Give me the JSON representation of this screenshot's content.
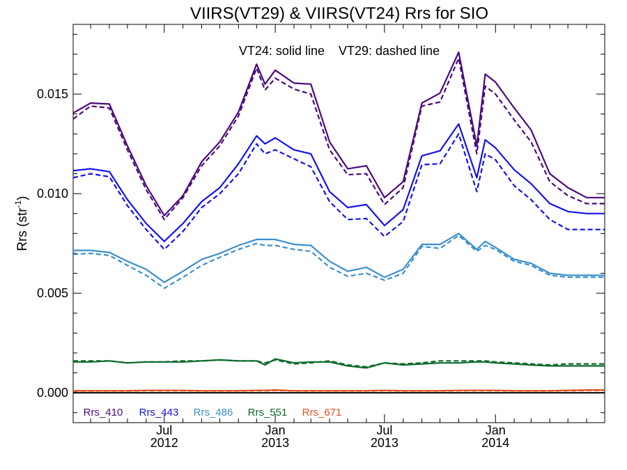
{
  "chart_data": {
    "type": "line",
    "title": "VIIRS(VT29) & VIIRS(VT24)  Rrs for SIO",
    "annotation": "VT24: solid line    VT29: dashed line",
    "xlabel": "",
    "ylabel": "Rrs (str",
    "ylabel_sup": "-1",
    "ylabel_close": ")",
    "ylim": [
      -0.0015,
      0.0185
    ],
    "xlim": [
      "2012-02-01",
      "2014-07-01"
    ],
    "grid": false,
    "legend_position": "bottom-left inside",
    "y_ticks": [
      {
        "value": 0.0,
        "label": "0.000"
      },
      {
        "value": 0.005,
        "label": "0.005"
      },
      {
        "value": 0.01,
        "label": "0.010"
      },
      {
        "value": 0.015,
        "label": "0.015"
      }
    ],
    "x_ticks": [
      {
        "date": "2012-07-01",
        "line1": "Jul",
        "line2": "2012"
      },
      {
        "date": "2013-01-01",
        "line1": "Jan",
        "line2": "2013"
      },
      {
        "date": "2013-07-01",
        "line1": "Jul",
        "line2": "2013"
      },
      {
        "date": "2014-01-01",
        "line1": "Jan",
        "line2": "2014"
      }
    ],
    "x_minor_tick_dates": [
      "2012-03-01",
      "2012-04-01",
      "2012-05-01",
      "2012-06-01",
      "2012-08-01",
      "2012-09-01",
      "2012-10-01",
      "2012-11-01",
      "2012-12-01",
      "2013-02-01",
      "2013-03-01",
      "2013-04-01",
      "2013-05-01",
      "2013-06-01",
      "2013-08-01",
      "2013-09-01",
      "2013-10-01",
      "2013-11-01",
      "2013-12-01",
      "2014-02-01",
      "2014-03-01",
      "2014-04-01",
      "2014-05-01",
      "2014-06-01"
    ],
    "x": [
      "2012-02-01",
      "2012-03-01",
      "2012-04-01",
      "2012-05-01",
      "2012-06-01",
      "2012-07-01",
      "2012-08-01",
      "2012-09-01",
      "2012-10-01",
      "2012-11-01",
      "2012-12-01",
      "2012-12-15",
      "2013-01-01",
      "2013-02-01",
      "2013-03-01",
      "2013-04-01",
      "2013-05-01",
      "2013-06-01",
      "2013-07-01",
      "2013-08-01",
      "2013-09-01",
      "2013-10-01",
      "2013-11-01",
      "2013-12-01",
      "2013-12-15",
      "2014-01-01",
      "2014-02-01",
      "2014-03-01",
      "2014-04-01",
      "2014-05-01",
      "2014-06-01",
      "2014-07-01"
    ],
    "series": [
      {
        "name": "Rrs_410",
        "color": "#4b0a7c",
        "style": "solid",
        "values": [
          0.01405,
          0.01455,
          0.0145,
          0.0124,
          0.0104,
          0.0089,
          0.0099,
          0.0116,
          0.0126,
          0.0141,
          0.0165,
          0.0155,
          0.0162,
          0.01555,
          0.0155,
          0.0126,
          0.01125,
          0.0114,
          0.0098,
          0.0106,
          0.01455,
          0.01505,
          0.0171,
          0.0124,
          0.016,
          0.0156,
          0.0143,
          0.0132,
          0.011,
          0.0103,
          0.0098,
          0.0098
        ]
      },
      {
        "name": "Rrs_410",
        "color": "#4b0a7c",
        "style": "dashed",
        "values": [
          0.01375,
          0.0144,
          0.0143,
          0.0122,
          0.0102,
          0.0087,
          0.0098,
          0.0114,
          0.0124,
          0.0139,
          0.0163,
          0.0152,
          0.0158,
          0.01525,
          0.015,
          0.0122,
          0.01095,
          0.011,
          0.00945,
          0.0103,
          0.0144,
          0.0146,
          0.0168,
          0.012,
          0.0154,
          0.015,
          0.0137,
          0.0126,
          0.0106,
          0.0099,
          0.0095,
          0.0095
        ]
      },
      {
        "name": "Rrs_443",
        "color": "#1212ee",
        "style": "solid",
        "values": [
          0.01115,
          0.01125,
          0.0111,
          0.0097,
          0.0085,
          0.0076,
          0.0085,
          0.0096,
          0.0103,
          0.0115,
          0.0129,
          0.0125,
          0.0128,
          0.0122,
          0.012,
          0.0101,
          0.0093,
          0.00945,
          0.0084,
          0.0092,
          0.0119,
          0.01215,
          0.0135,
          0.0108,
          0.0127,
          0.0123,
          0.0112,
          0.0105,
          0.0095,
          0.0091,
          0.009,
          0.009
        ]
      },
      {
        "name": "Rrs_443",
        "color": "#1212ee",
        "style": "dashed",
        "values": [
          0.0108,
          0.011,
          0.01085,
          0.0094,
          0.0082,
          0.0072,
          0.0081,
          0.0093,
          0.01,
          0.011,
          0.0125,
          0.012,
          0.0122,
          0.01175,
          0.01135,
          0.0096,
          0.0087,
          0.00875,
          0.00785,
          0.0086,
          0.01145,
          0.0115,
          0.013,
          0.0101,
          0.012,
          0.0117,
          0.0104,
          0.0097,
          0.0087,
          0.0082,
          0.0082,
          0.0082
        ]
      },
      {
        "name": "Rrs_486",
        "color": "#3a8fcf",
        "style": "solid",
        "values": [
          0.00715,
          0.00715,
          0.00705,
          0.0066,
          0.0062,
          0.00555,
          0.0061,
          0.0067,
          0.007,
          0.0074,
          0.0077,
          0.0077,
          0.0077,
          0.00745,
          0.0074,
          0.0066,
          0.0061,
          0.0063,
          0.0058,
          0.0062,
          0.00745,
          0.00745,
          0.008,
          0.0072,
          0.0076,
          0.0073,
          0.0067,
          0.0065,
          0.006,
          0.0059,
          0.0059,
          0.0059
        ]
      },
      {
        "name": "Rrs_486",
        "color": "#3a8fcf",
        "style": "dashed",
        "values": [
          0.00695,
          0.007,
          0.0069,
          0.0064,
          0.0059,
          0.00525,
          0.0058,
          0.0064,
          0.0068,
          0.0072,
          0.0075,
          0.0074,
          0.0074,
          0.0072,
          0.0071,
          0.0063,
          0.00585,
          0.006,
          0.00565,
          0.006,
          0.00735,
          0.00725,
          0.0079,
          0.0071,
          0.0074,
          0.0072,
          0.0066,
          0.0064,
          0.0059,
          0.0058,
          0.0058,
          0.0058
        ]
      },
      {
        "name": "Rrs_551",
        "color": "#0a6a2a",
        "style": "solid",
        "values": [
          0.00155,
          0.00155,
          0.0016,
          0.0015,
          0.00155,
          0.00155,
          0.00155,
          0.0016,
          0.00165,
          0.0016,
          0.0016,
          0.0014,
          0.0017,
          0.0015,
          0.00155,
          0.00155,
          0.00135,
          0.00125,
          0.0015,
          0.0014,
          0.00145,
          0.0015,
          0.0015,
          0.00155,
          0.00155,
          0.0015,
          0.00145,
          0.0014,
          0.00135,
          0.00135,
          0.00135,
          0.00135
        ]
      },
      {
        "name": "Rrs_551",
        "color": "#0a6a2a",
        "style": "dashed",
        "values": [
          0.0016,
          0.0016,
          0.0016,
          0.0015,
          0.00155,
          0.00155,
          0.0016,
          0.0016,
          0.00165,
          0.0016,
          0.0016,
          0.0015,
          0.00165,
          0.00145,
          0.0015,
          0.0016,
          0.0014,
          0.0013,
          0.0015,
          0.00145,
          0.0015,
          0.0016,
          0.0016,
          0.0016,
          0.0016,
          0.00155,
          0.0015,
          0.00145,
          0.0014,
          0.00145,
          0.00145,
          0.00145
        ]
      },
      {
        "name": "Rrs_671",
        "color": "#e0521c",
        "style": "solid",
        "values": [
          0.0001,
          0.0001,
          0.0001,
          0.0001,
          0.00012,
          0.00012,
          0.00012,
          0.0001,
          0.0001,
          0.0001,
          0.00012,
          0.00012,
          0.00014,
          0.0001,
          0.0001,
          0.0001,
          0.0001,
          0.0001,
          0.00012,
          0.0001,
          0.0001,
          0.0001,
          0.00012,
          0.00012,
          0.00012,
          0.00012,
          0.0001,
          0.0001,
          0.0001,
          0.00012,
          0.00014,
          0.00014
        ]
      },
      {
        "name": "Rrs_671",
        "color": "#e0521c",
        "style": "dashed",
        "values": [
          8e-05,
          9e-05,
          9e-05,
          9e-05,
          0.0001,
          0.0001,
          0.0001,
          9e-05,
          9e-05,
          9e-05,
          0.0001,
          0.0001,
          0.00012,
          9e-05,
          9e-05,
          9e-05,
          9e-05,
          9e-05,
          0.0001,
          9e-05,
          9e-05,
          9e-05,
          0.0001,
          0.0001,
          0.0001,
          0.0001,
          9e-05,
          9e-05,
          9e-05,
          0.0001,
          0.00012,
          0.00012
        ]
      }
    ],
    "legend": [
      {
        "label": "Rrs_410",
        "color": "#4b0a7c"
      },
      {
        "label": "Rrs_443",
        "color": "#1212ee"
      },
      {
        "label": "Rrs_486",
        "color": "#3a8fcf"
      },
      {
        "label": "Rrs_551",
        "color": "#0a6a2a"
      },
      {
        "label": "Rrs_671",
        "color": "#e0521c"
      }
    ]
  }
}
